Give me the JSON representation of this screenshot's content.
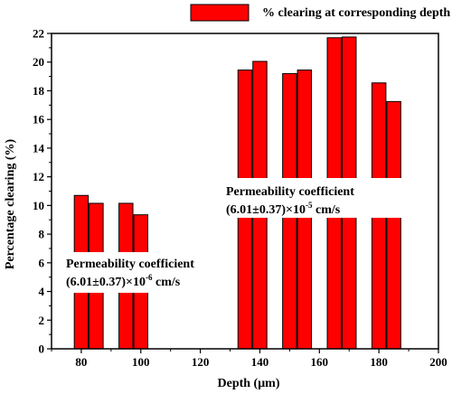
{
  "chart_data": {
    "type": "bar",
    "xlabel": "Depth (μm)",
    "ylabel": "Percentage clearing (%)",
    "xlim": [
      70,
      200
    ],
    "ylim": [
      0,
      22
    ],
    "x_ticks": [
      80,
      100,
      120,
      140,
      160,
      180,
      200
    ],
    "y_ticks": [
      0,
      2,
      4,
      6,
      8,
      10,
      12,
      14,
      16,
      18,
      20,
      22
    ],
    "bar_color": "#ff0000",
    "series": [
      {
        "name": "% clearing at corresponding depth",
        "x": [
          80,
          85,
          95,
          100,
          135,
          140,
          150,
          155,
          165,
          170,
          180,
          185
        ],
        "values": [
          10.7,
          10.15,
          10.15,
          9.35,
          19.45,
          20.05,
          19.2,
          19.45,
          21.7,
          21.75,
          18.55,
          17.25
        ]
      }
    ],
    "legend": {
      "position": "top",
      "label": "% clearing at corresponding depth"
    },
    "annotations": [
      {
        "id": "low",
        "line1": "Permeability coefficient",
        "line2_prefix": "(6.01±0.37)×10",
        "line2_exp": "-6",
        "line2_suffix": " cm/s"
      },
      {
        "id": "high",
        "line1": "Permeability coefficient",
        "line2_prefix": "(6.01±0.37)×10",
        "line2_exp": "-5",
        "line2_suffix": " cm/s"
      }
    ]
  }
}
